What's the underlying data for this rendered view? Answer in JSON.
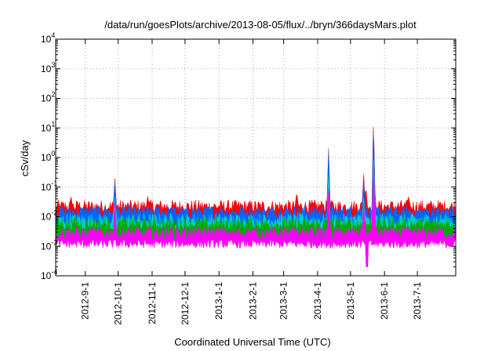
{
  "chart_data": {
    "type": "area",
    "title": "/data/run/goesPlots/archive/2013-08-05/flux/../bryn/366daysMars.plot",
    "xlabel": "Coordinated Universal Time (UTC)",
    "ylabel": "cSv/day",
    "yscale": "log",
    "ylim": [
      0.0001,
      10000
    ],
    "xlim": [
      "2012-08-05",
      "2013-08-05"
    ],
    "grid": true,
    "y_ticks": [
      {
        "base": "10",
        "exp": "-4",
        "value": 0.0001
      },
      {
        "base": "10",
        "exp": "-3",
        "value": 0.001
      },
      {
        "base": "10",
        "exp": "-2",
        "value": 0.01
      },
      {
        "base": "10",
        "exp": "-1",
        "value": 0.1
      },
      {
        "base": "10",
        "exp": "0",
        "value": 1
      },
      {
        "base": "10",
        "exp": "1",
        "value": 10
      },
      {
        "base": "10",
        "exp": "2",
        "value": 100
      },
      {
        "base": "10",
        "exp": "3",
        "value": 1000
      },
      {
        "base": "10",
        "exp": "4",
        "value": 10000
      }
    ],
    "x_ticks": [
      {
        "label": "2012-9-1",
        "date": "2012-09-01"
      },
      {
        "label": "2012-10-1",
        "date": "2012-10-01"
      },
      {
        "label": "2012-11-1",
        "date": "2012-11-01"
      },
      {
        "label": "2012-12-1",
        "date": "2012-12-01"
      },
      {
        "label": "2013-1-1",
        "date": "2013-01-01"
      },
      {
        "label": "2013-2-1",
        "date": "2013-02-01"
      },
      {
        "label": "2013-3-1",
        "date": "2013-03-01"
      },
      {
        "label": "2013-4-1",
        "date": "2013-04-01"
      },
      {
        "label": "2013-5-1",
        "date": "2013-05-01"
      },
      {
        "label": "2013-6-1",
        "date": "2013-06-01"
      },
      {
        "label": "2013-7-1",
        "date": "2013-07-01"
      }
    ],
    "series": [
      {
        "color": "#ff0000",
        "baseline": 0.02,
        "spikes": [
          {
            "date": "2012-08-19",
            "value": 0.05
          },
          {
            "date": "2012-08-25",
            "value": 0.03
          },
          {
            "date": "2012-09-28",
            "value": 0.2
          },
          {
            "date": "2012-10-28",
            "value": 0.05
          },
          {
            "date": "2013-03-13",
            "value": 0.07
          },
          {
            "date": "2013-04-11",
            "value": 2.5
          },
          {
            "date": "2013-05-13",
            "value": 0.3
          },
          {
            "date": "2013-05-22",
            "value": 25
          },
          {
            "date": "2013-06-23",
            "value": 0.05
          },
          {
            "date": "2013-04-05",
            "value": 0.03
          },
          {
            "date": "2013-05-15",
            "value": 0.1
          }
        ]
      },
      {
        "color": "#0066ff",
        "baseline": 0.013,
        "spikes": [
          {
            "date": "2012-09-28",
            "value": 0.15
          },
          {
            "date": "2013-04-11",
            "value": 2.0
          },
          {
            "date": "2013-05-22",
            "value": 15
          },
          {
            "date": "2013-05-13",
            "value": 0.2
          }
        ]
      },
      {
        "color": "#00cccc",
        "baseline": 0.007,
        "spikes": [
          {
            "date": "2012-09-28",
            "value": 0.05
          },
          {
            "date": "2013-04-11",
            "value": 0.3
          },
          {
            "date": "2013-05-22",
            "value": 1.5
          },
          {
            "date": "2013-05-13",
            "value": 0.05
          }
        ]
      },
      {
        "color": "#00aa00",
        "baseline": 0.005,
        "spikes": [
          {
            "date": "2013-04-11",
            "value": 0.1
          },
          {
            "date": "2013-05-22",
            "value": 0.5
          }
        ]
      },
      {
        "color": "#ff00ff",
        "baseline": 0.0025,
        "spikes": [
          {
            "date": "2012-09-28",
            "value": 0.03
          },
          {
            "date": "2013-04-11",
            "value": 0.1
          },
          {
            "date": "2013-05-22",
            "value": 0.8
          },
          {
            "date": "2013-05-13",
            "value": 0.03
          }
        ]
      }
    ],
    "dips": [
      {
        "date": "2013-05-16",
        "value": 0.0002
      }
    ]
  }
}
